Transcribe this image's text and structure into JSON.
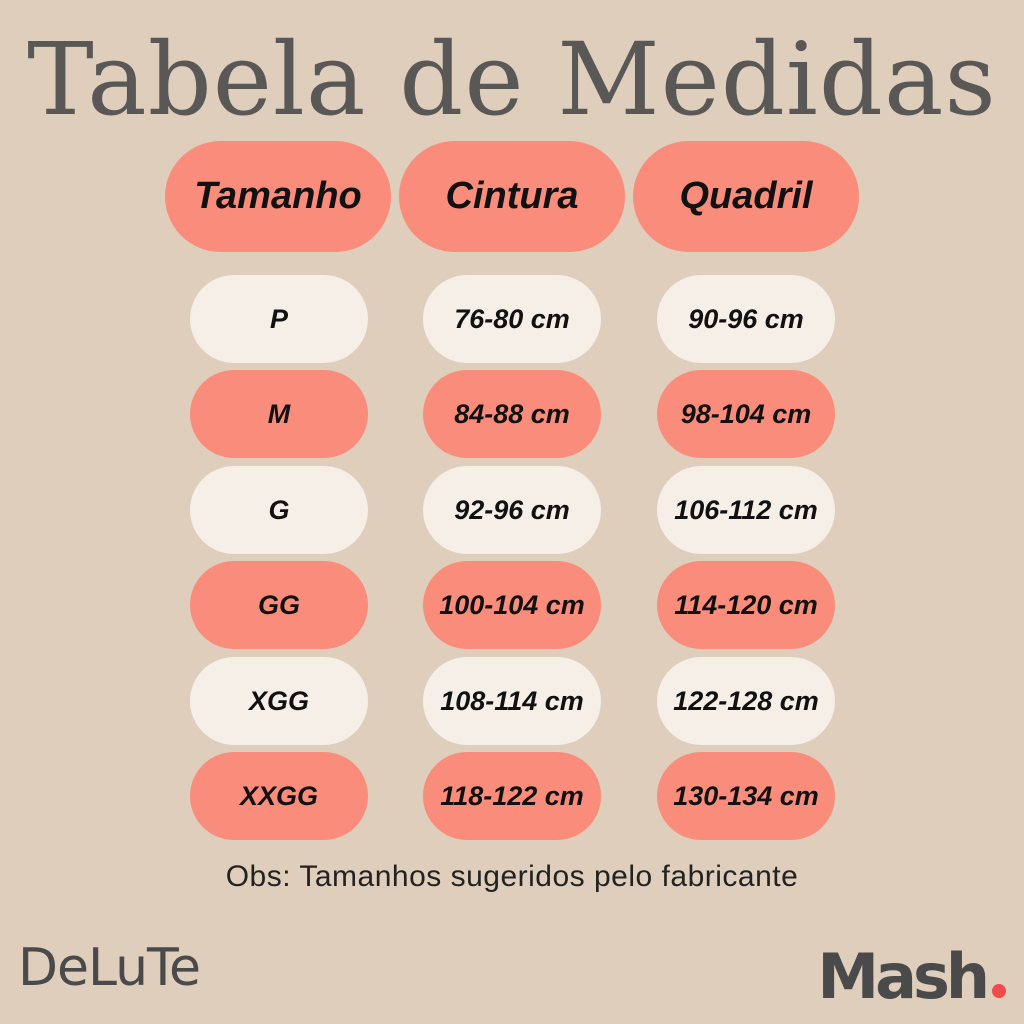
{
  "title": "Tabela de Medidas",
  "headers": [
    "Tamanho",
    "Cintura",
    "Quadril"
  ],
  "rows": [
    {
      "size": "P",
      "cintura": "76-80 cm",
      "quadril": "90-96 cm"
    },
    {
      "size": "M",
      "cintura": "84-88 cm",
      "quadril": "98-104 cm"
    },
    {
      "size": "G",
      "cintura": "92-96 cm",
      "quadril": "106-112 cm"
    },
    {
      "size": "GG",
      "cintura": "100-104 cm",
      "quadril": "114-120 cm"
    },
    {
      "size": "XGG",
      "cintura": "108-114 cm",
      "quadril": "122-128 cm"
    },
    {
      "size": "XXGG",
      "cintura": "118-122 cm",
      "quadril": "130-134 cm"
    }
  ],
  "note": "Obs: Tamanhos sugeridos pelo fabricante",
  "logos": {
    "left": "DeLuTe",
    "right": "Mash"
  },
  "colors": {
    "background": "#dfcebc",
    "salmon": "#fa8c7b",
    "light": "#f5efe8",
    "title": "#595856",
    "logo_dot": "#f04b4b"
  }
}
